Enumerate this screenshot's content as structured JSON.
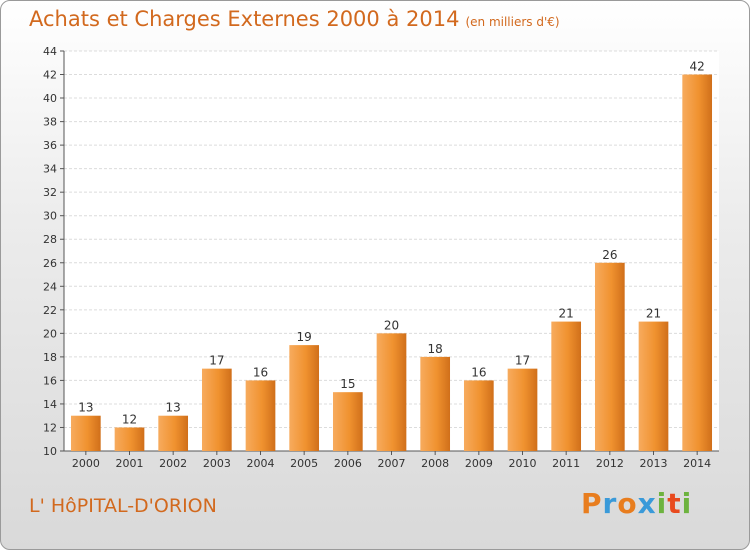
{
  "chart_data": {
    "type": "bar",
    "title": "Achats et Charges Externes 2000 à 2014",
    "subtitle": "(en milliers d'€)",
    "categories": [
      "2000",
      "2001",
      "2002",
      "2003",
      "2004",
      "2005",
      "2006",
      "2007",
      "2008",
      "2009",
      "2010",
      "2011",
      "2012",
      "2013",
      "2014"
    ],
    "values": [
      13,
      12,
      13,
      17,
      16,
      19,
      15,
      20,
      18,
      16,
      17,
      21,
      26,
      21,
      42
    ],
    "ylim": [
      10,
      44
    ],
    "yticks": [
      10,
      12,
      14,
      16,
      18,
      20,
      22,
      24,
      26,
      28,
      30,
      32,
      34,
      36,
      38,
      40,
      42,
      44
    ],
    "grid": true,
    "bar_color": "#f0922f",
    "bar_color_light": "#f7ab5e",
    "bar_color_dark": "#d06f1a"
  },
  "footer": {
    "place_name": "L' HôPITAL-D'ORION",
    "logo_text": "Proxiti",
    "logo_colors": [
      "#e87d1e",
      "#3a9ad9",
      "#e87d1e",
      "#3a9ad9",
      "#6db33f",
      "#e84a1e",
      "#6db33f"
    ]
  }
}
